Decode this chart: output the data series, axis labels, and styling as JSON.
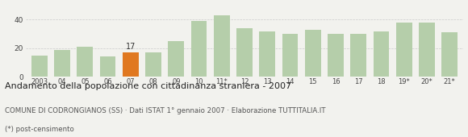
{
  "categories": [
    "2003",
    "04",
    "05",
    "06",
    "07",
    "08",
    "09",
    "10",
    "11*",
    "12",
    "13",
    "14",
    "15",
    "16",
    "17",
    "18",
    "19*",
    "20*",
    "21*"
  ],
  "values": [
    15,
    19,
    21,
    14,
    17,
    17,
    25,
    39,
    43,
    34,
    32,
    30,
    33,
    30,
    30,
    32,
    38,
    38,
    31
  ],
  "highlight_index": 4,
  "highlight_value": 17,
  "bar_color": "#b5ceaa",
  "highlight_color": "#e07820",
  "title": "Andamento della popolazione con cittadinanza straniera - 2007",
  "subtitle": "COMUNE DI CODRONGIANOS (SS) · Dati ISTAT 1° gennaio 2007 · Elaborazione TUTTITALIA.IT",
  "footnote": "(*) post-censimento",
  "ylim": [
    0,
    50
  ],
  "yticks": [
    0,
    20,
    40
  ],
  "background_color": "#f2f2ee",
  "grid_color": "#cccccc",
  "title_fontsize": 8.0,
  "subtitle_fontsize": 6.2,
  "footnote_fontsize": 6.2
}
